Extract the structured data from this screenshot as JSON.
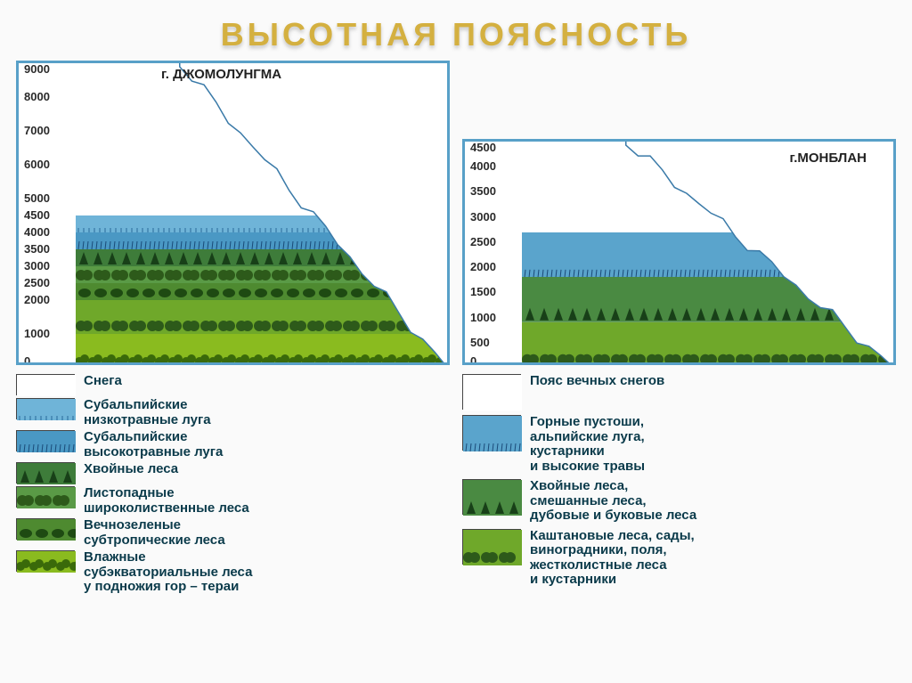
{
  "title": "ВЫСОТНАЯ ПОЯСНОСТЬ",
  "title_color": "#d4b040",
  "border_color": "#58a0c8",
  "left": {
    "mountain": "г. ДЖОМОЛУНГМА",
    "axis_unit": "м",
    "ymax": 9000,
    "ticks": [
      "9000",
      "8000",
      "7000",
      "6000",
      "5000",
      "4500",
      "4000",
      "3500",
      "3000",
      "2500",
      "2000",
      "1000",
      "0"
    ],
    "tick_alt": [
      9000,
      8000,
      7000,
      6000,
      5000,
      4500,
      4000,
      3500,
      3000,
      2500,
      2000,
      1000,
      0
    ],
    "zones": [
      {
        "top_alt": 9000,
        "bottom_alt": 4500,
        "color": "#ffffff",
        "pattern": "none"
      },
      {
        "top_alt": 4500,
        "bottom_alt": 4000,
        "color": "#6fb4d8",
        "pattern": "lowgrass"
      },
      {
        "top_alt": 4000,
        "bottom_alt": 3500,
        "color": "#4a98c4",
        "pattern": "highgrass"
      },
      {
        "top_alt": 3500,
        "bottom_alt": 3000,
        "color": "#3e7c3a",
        "pattern": "conifer"
      },
      {
        "top_alt": 3000,
        "bottom_alt": 2500,
        "color": "#5a9a46",
        "pattern": "broadleaf"
      },
      {
        "top_alt": 2500,
        "bottom_alt": 2000,
        "color": "#4e8a30",
        "pattern": "subtrop"
      },
      {
        "top_alt": 2000,
        "bottom_alt": 1000,
        "color": "#6fa82a",
        "pattern": "broadleaf"
      },
      {
        "top_alt": 1000,
        "bottom_alt": 0,
        "color": "#8abb1f",
        "pattern": "subeq"
      }
    ],
    "legend": [
      {
        "color": "#ffffff",
        "pattern": "none",
        "label": "Снега"
      },
      {
        "color": "#6fb4d8",
        "pattern": "lowgrass",
        "label": "Субальпийские\nнизкотравные луга"
      },
      {
        "color": "#4a98c4",
        "pattern": "highgrass",
        "label": "Субальпийские\nвысокотравные луга"
      },
      {
        "color": "#3e7c3a",
        "pattern": "conifer",
        "label": "Хвойные леса"
      },
      {
        "color": "#5a9a46",
        "pattern": "broadleaf",
        "label": "Листопадные\nшироколиственные леса"
      },
      {
        "color": "#4e8a30",
        "pattern": "subtrop",
        "label": "Вечнозеленые\nсубтропические леса"
      },
      {
        "color": "#8abb1f",
        "pattern": "subeq",
        "label": "Влажные\nсубэкваториальные леса\nу подножия гор – тераи"
      }
    ]
  },
  "right": {
    "mountain": "г.МОНБЛАН",
    "axis_unit": "м",
    "ymax": 4500,
    "ticks": [
      "4500",
      "4000",
      "3500",
      "3000",
      "2500",
      "2000",
      "1500",
      "1000",
      "500",
      "0"
    ],
    "tick_alt": [
      4500,
      4000,
      3500,
      3000,
      2500,
      2000,
      1500,
      1000,
      500,
      0
    ],
    "zones": [
      {
        "top_alt": 4500,
        "bottom_alt": 2700,
        "color": "#ffffff",
        "pattern": "none"
      },
      {
        "top_alt": 2700,
        "bottom_alt": 1800,
        "color": "#5aa4cc",
        "pattern": "highgrass"
      },
      {
        "top_alt": 1800,
        "bottom_alt": 900,
        "color": "#4a8a42",
        "pattern": "conifer"
      },
      {
        "top_alt": 900,
        "bottom_alt": 0,
        "color": "#6fa82a",
        "pattern": "broadleaf"
      }
    ],
    "legend": [
      {
        "color": "#ffffff",
        "pattern": "none",
        "label": "Пояс вечных снегов"
      },
      {
        "color": "#5aa4cc",
        "pattern": "highgrass",
        "label": "Горные пустоши,\nальпийские луга,\nкустарники\nи высокие травы"
      },
      {
        "color": "#4a8a42",
        "pattern": "conifer",
        "label": "Хвойные леса,\nсмешанные леса,\nдубовые и буковые леса"
      },
      {
        "color": "#6fa82a",
        "pattern": "broadleaf",
        "label": "Каштановые леса, сады,\nвиноградники, поля,\nжестколистные леса\nи кустарники"
      }
    ]
  }
}
